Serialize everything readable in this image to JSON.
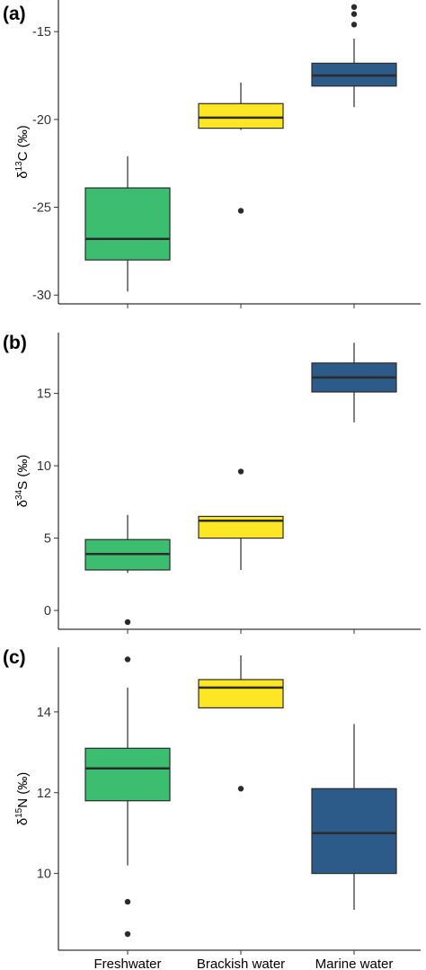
{
  "chart_data": {
    "type": "box",
    "categories": [
      "Freshwater",
      "Brackish water",
      "Marine water"
    ],
    "colors": [
      "#3dbd6f",
      "#fde725",
      "#2c5b8a"
    ],
    "panels": [
      {
        "label": "(a)",
        "ylabel": {
          "prefix": "δ",
          "sup": "13",
          "suffix": "C (‰)"
        },
        "ylim": [
          -30.5,
          -13.2
        ],
        "yticks": [
          -30,
          -25,
          -20,
          -15
        ],
        "tick_labels": [
          "-30",
          "-25",
          "-20",
          "-15"
        ],
        "boxes": [
          {
            "q1": -28.0,
            "median": -26.8,
            "q3": -23.9,
            "whislo": -29.8,
            "whishi": -22.1,
            "outliers": []
          },
          {
            "q1": -20.5,
            "median": -19.9,
            "q3": -19.1,
            "whislo": -20.6,
            "whishi": -17.9,
            "outliers": [
              -25.2
            ]
          },
          {
            "q1": -18.1,
            "median": -17.5,
            "q3": -16.8,
            "whislo": -19.3,
            "whishi": -15.4,
            "outliers": [
              -14.6,
              -14.0,
              -13.6
            ]
          }
        ]
      },
      {
        "label": "(b)",
        "ylabel": {
          "prefix": "δ",
          "sup": "34",
          "suffix": "S (‰)"
        },
        "ylim": [
          -1.3,
          19.2
        ],
        "yticks": [
          0,
          5,
          10,
          15
        ],
        "tick_labels": [
          "0",
          "5",
          "10",
          "15"
        ],
        "boxes": [
          {
            "q1": 2.8,
            "median": 3.9,
            "q3": 4.9,
            "whislo": 2.6,
            "whishi": 6.6,
            "outliers": [
              -0.8
            ]
          },
          {
            "q1": 5.0,
            "median": 6.2,
            "q3": 6.5,
            "whislo": 2.8,
            "whishi": 6.5,
            "outliers": [
              9.6
            ]
          },
          {
            "q1": 15.1,
            "median": 16.1,
            "q3": 17.1,
            "whislo": 13.0,
            "whishi": 18.5,
            "outliers": []
          }
        ]
      },
      {
        "label": "(c)",
        "ylabel": {
          "prefix": "δ",
          "sup": "15",
          "suffix": "N (‰)"
        },
        "ylim": [
          8.1,
          15.6
        ],
        "yticks": [
          10,
          12,
          14
        ],
        "tick_labels": [
          "10",
          "12",
          "14"
        ],
        "boxes": [
          {
            "q1": 11.8,
            "median": 12.6,
            "q3": 13.1,
            "whislo": 10.2,
            "whishi": 14.6,
            "outliers": [
              15.3,
              9.3,
              8.5
            ]
          },
          {
            "q1": 14.1,
            "median": 14.6,
            "q3": 14.8,
            "whislo": 14.1,
            "whishi": 15.4,
            "outliers": [
              12.1
            ]
          },
          {
            "q1": 10.0,
            "median": 11.0,
            "q3": 12.1,
            "whislo": 9.1,
            "whishi": 13.7,
            "outliers": []
          }
        ]
      }
    ]
  }
}
